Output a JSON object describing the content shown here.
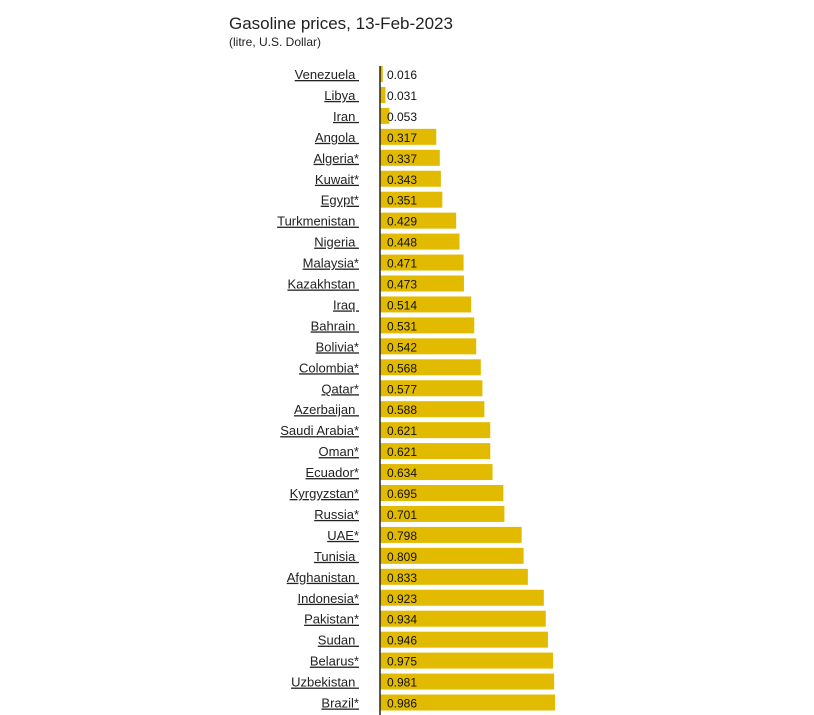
{
  "chart_data": {
    "type": "bar",
    "orientation": "horizontal",
    "title": "Gasoline prices, 13-Feb-2023",
    "subtitle": "(litre, U.S. Dollar)",
    "xlabel": "",
    "ylabel": "",
    "xlim": [
      0,
      1.0
    ],
    "grid": false,
    "categories": [
      "Venezuela ",
      "Libya ",
      "Iran ",
      "Angola ",
      "Algeria*",
      "Kuwait*",
      "Egypt*",
      "Turkmenistan ",
      "Nigeria ",
      "Malaysia*",
      "Kazakhstan ",
      "Iraq ",
      "Bahrain ",
      "Bolivia*",
      "Colombia*",
      "Qatar*",
      "Azerbaijan ",
      "Saudi Arabia*",
      "Oman*",
      "Ecuador*",
      "Kyrgyzstan*",
      "Russia*",
      "UAE*",
      "Tunisia ",
      "Afghanistan ",
      "Indonesia*",
      "Pakistan*",
      "Sudan ",
      "Belarus*",
      "Uzbekistan ",
      "Brazil*"
    ],
    "value_labels": [
      "0.016",
      "0.031",
      "0.053",
      "0.317",
      "0.337",
      "0.343",
      "0.351",
      "0.429",
      "0.448",
      "0.471",
      "0.473",
      "0.514",
      "0.531",
      "0.542",
      "0.568",
      "0.577",
      "0.588",
      "0.621",
      "0.621",
      "0.634",
      "0.695",
      "0.701",
      "0.798",
      "0.809",
      "0.833",
      "0.923",
      "0.934",
      "0.946",
      "0.975",
      "0.981",
      "0.986"
    ],
    "values": [
      0.016,
      0.031,
      0.053,
      0.317,
      0.337,
      0.343,
      0.351,
      0.429,
      0.448,
      0.471,
      0.473,
      0.514,
      0.531,
      0.542,
      0.568,
      0.577,
      0.588,
      0.621,
      0.621,
      0.634,
      0.695,
      0.701,
      0.798,
      0.809,
      0.833,
      0.923,
      0.934,
      0.946,
      0.975,
      0.981,
      0.986
    ],
    "colors": {
      "bar": "#e2bb00",
      "axis": "#222222",
      "text": "#222222"
    }
  }
}
